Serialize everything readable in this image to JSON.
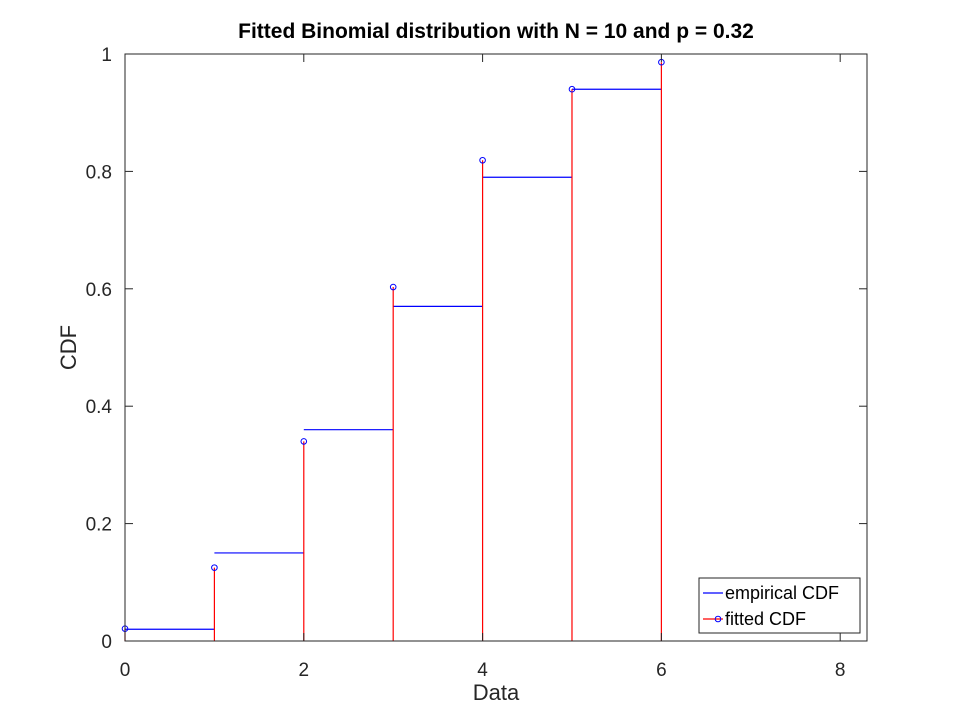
{
  "chart_data": {
    "type": "line",
    "title": "Fitted Binomial distribution with N = 10 and p = 0.32",
    "xlabel": "Data",
    "ylabel": "CDF",
    "xlim": [
      0,
      8.3
    ],
    "ylim": [
      0,
      1
    ],
    "xticks": [
      0,
      2,
      4,
      6,
      8
    ],
    "yticks": [
      0,
      0.2,
      0.4,
      0.6,
      0.8,
      1
    ],
    "xtick_labels": [
      "0",
      "2",
      "4",
      "6",
      "8"
    ],
    "ytick_labels": [
      "0",
      "0.2",
      "0.4",
      "0.6",
      "0.8",
      "1"
    ],
    "grid": false,
    "legend_position": "bottom-right",
    "series": [
      {
        "name": "empirical CDF",
        "style": "stairs",
        "color": "#0000ff",
        "x": [
          0,
          1,
          2,
          3,
          4,
          5,
          6
        ],
        "y": [
          0.02,
          0.15,
          0.36,
          0.57,
          0.79,
          0.94,
          1.0
        ]
      },
      {
        "name": "fitted CDF",
        "style": "stem",
        "color": "#ff0000",
        "marker_color": "#0000ff",
        "x": [
          0,
          1,
          2,
          3,
          4,
          5,
          6
        ],
        "y": [
          0.021,
          0.125,
          0.34,
          0.603,
          0.819,
          0.94,
          0.986
        ]
      }
    ]
  }
}
